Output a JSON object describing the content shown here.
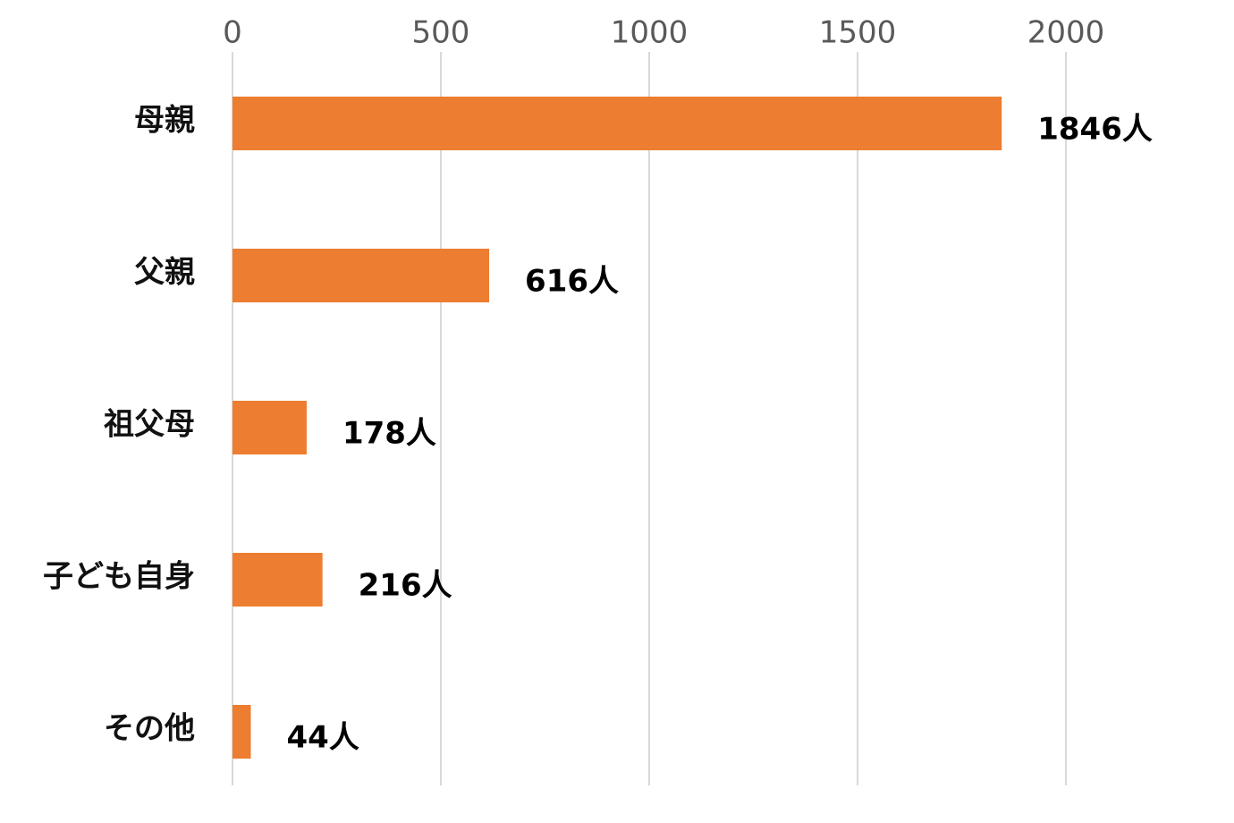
{
  "chart_data": {
    "type": "bar",
    "categories": [
      "母親",
      "父親",
      "祖父母",
      "子ども自身",
      "その他"
    ],
    "values": [
      1846,
      616,
      178,
      216,
      44
    ],
    "value_labels": [
      "1846人",
      "616人",
      "178人",
      "216人",
      "44人"
    ],
    "color": "#ed7d31",
    "xlim": [
      0,
      2000
    ],
    "xticks": [
      0,
      500,
      1000,
      1500,
      2000
    ],
    "grid": true
  }
}
